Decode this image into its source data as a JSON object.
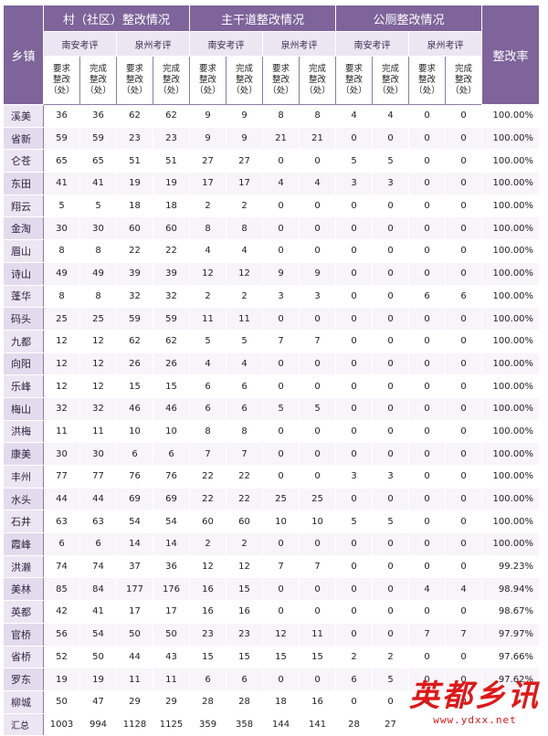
{
  "header": {
    "town_label": "乡镇",
    "rate_label": "整改率",
    "groups": [
      "村（社区）整改情况",
      "主干道整改情况",
      "公厕整改情况"
    ],
    "subgroups": [
      "南安考评",
      "泉州考评",
      "南安考评",
      "泉州考评",
      "南安考评",
      "泉州考评"
    ],
    "col_required": [
      "要求",
      "整改",
      "（处）"
    ],
    "col_done": [
      "完成",
      "整改",
      "（处）"
    ]
  },
  "rows": [
    {
      "town": "溪美",
      "v": [
        "36",
        "36",
        "62",
        "62",
        "9",
        "9",
        "8",
        "8",
        "4",
        "4",
        "0",
        "0"
      ],
      "rate": "100.00%"
    },
    {
      "town": "省新",
      "v": [
        "59",
        "59",
        "23",
        "23",
        "9",
        "9",
        "21",
        "21",
        "0",
        "0",
        "0",
        "0"
      ],
      "rate": "100.00%"
    },
    {
      "town": "仑苍",
      "v": [
        "65",
        "65",
        "51",
        "51",
        "27",
        "27",
        "0",
        "0",
        "5",
        "5",
        "0",
        "0"
      ],
      "rate": "100.00%"
    },
    {
      "town": "东田",
      "v": [
        "41",
        "41",
        "19",
        "19",
        "17",
        "17",
        "4",
        "4",
        "3",
        "3",
        "0",
        "0"
      ],
      "rate": "100.00%"
    },
    {
      "town": "翔云",
      "v": [
        "5",
        "5",
        "18",
        "18",
        "2",
        "2",
        "0",
        "0",
        "0",
        "0",
        "0",
        "0"
      ],
      "rate": "100.00%"
    },
    {
      "town": "金淘",
      "v": [
        "30",
        "30",
        "60",
        "60",
        "8",
        "8",
        "0",
        "0",
        "0",
        "0",
        "0",
        "0"
      ],
      "rate": "100.00%"
    },
    {
      "town": "眉山",
      "v": [
        "8",
        "8",
        "22",
        "22",
        "4",
        "4",
        "0",
        "0",
        "0",
        "0",
        "0",
        "0"
      ],
      "rate": "100.00%"
    },
    {
      "town": "诗山",
      "v": [
        "49",
        "49",
        "39",
        "39",
        "12",
        "12",
        "9",
        "9",
        "0",
        "0",
        "0",
        "0"
      ],
      "rate": "100.00%"
    },
    {
      "town": "蓬华",
      "v": [
        "8",
        "8",
        "32",
        "32",
        "2",
        "2",
        "3",
        "3",
        "0",
        "0",
        "6",
        "6"
      ],
      "rate": "100.00%"
    },
    {
      "town": "码头",
      "v": [
        "25",
        "25",
        "59",
        "59",
        "11",
        "11",
        "0",
        "0",
        "0",
        "0",
        "0",
        "0"
      ],
      "rate": "100.00%"
    },
    {
      "town": "九都",
      "v": [
        "12",
        "12",
        "62",
        "62",
        "5",
        "5",
        "7",
        "7",
        "0",
        "0",
        "0",
        "0"
      ],
      "rate": "100.00%"
    },
    {
      "town": "向阳",
      "v": [
        "12",
        "12",
        "26",
        "26",
        "4",
        "4",
        "0",
        "0",
        "0",
        "0",
        "0",
        "0"
      ],
      "rate": "100.00%"
    },
    {
      "town": "乐峰",
      "v": [
        "12",
        "12",
        "15",
        "15",
        "6",
        "6",
        "0",
        "0",
        "0",
        "0",
        "0",
        "0"
      ],
      "rate": "100.00%"
    },
    {
      "town": "梅山",
      "v": [
        "32",
        "32",
        "46",
        "46",
        "6",
        "6",
        "5",
        "5",
        "0",
        "0",
        "0",
        "0"
      ],
      "rate": "100.00%"
    },
    {
      "town": "洪梅",
      "v": [
        "11",
        "11",
        "10",
        "10",
        "8",
        "8",
        "0",
        "0",
        "0",
        "0",
        "0",
        "0"
      ],
      "rate": "100.00%"
    },
    {
      "town": "康美",
      "v": [
        "30",
        "30",
        "6",
        "6",
        "7",
        "7",
        "0",
        "0",
        "0",
        "0",
        "0",
        "0"
      ],
      "rate": "100.00%"
    },
    {
      "town": "丰州",
      "v": [
        "77",
        "77",
        "76",
        "76",
        "22",
        "22",
        "0",
        "0",
        "3",
        "3",
        "0",
        "0"
      ],
      "rate": "100.00%"
    },
    {
      "town": "水头",
      "v": [
        "44",
        "44",
        "69",
        "69",
        "22",
        "22",
        "25",
        "25",
        "0",
        "0",
        "0",
        "0"
      ],
      "rate": "100.00%"
    },
    {
      "town": "石井",
      "v": [
        "63",
        "63",
        "54",
        "54",
        "60",
        "60",
        "10",
        "10",
        "5",
        "5",
        "0",
        "0"
      ],
      "rate": "100.00%"
    },
    {
      "town": "霞峰",
      "v": [
        "6",
        "6",
        "14",
        "14",
        "2",
        "2",
        "0",
        "0",
        "0",
        "0",
        "0",
        "0"
      ],
      "rate": "100.00%"
    },
    {
      "town": "洪濑",
      "v": [
        "74",
        "74",
        "37",
        "36",
        "12",
        "12",
        "7",
        "7",
        "0",
        "0",
        "0",
        "0"
      ],
      "rate": "99.23%"
    },
    {
      "town": "美林",
      "v": [
        "85",
        "84",
        "177",
        "176",
        "16",
        "15",
        "0",
        "0",
        "0",
        "0",
        "4",
        "4"
      ],
      "rate": "98.94%"
    },
    {
      "town": "英都",
      "v": [
        "42",
        "41",
        "17",
        "17",
        "16",
        "16",
        "0",
        "0",
        "0",
        "0",
        "0",
        "0"
      ],
      "rate": "98.67%"
    },
    {
      "town": "官桥",
      "v": [
        "56",
        "54",
        "50",
        "50",
        "23",
        "23",
        "12",
        "11",
        "0",
        "0",
        "7",
        "7"
      ],
      "rate": "97.97%"
    },
    {
      "town": "省桥",
      "v": [
        "52",
        "50",
        "44",
        "43",
        "15",
        "15",
        "15",
        "15",
        "2",
        "2",
        "0",
        "0"
      ],
      "rate": "97.66%"
    },
    {
      "town": "罗东",
      "v": [
        "19",
        "19",
        "11",
        "11",
        "6",
        "6",
        "0",
        "0",
        "6",
        "5",
        "0",
        "0"
      ],
      "rate": "97.62%"
    },
    {
      "town": "柳城",
      "v": [
        "50",
        "47",
        "29",
        "29",
        "28",
        "28",
        "18",
        "16",
        "0",
        "0",
        "0",
        "0"
      ],
      "rate": ""
    },
    {
      "town": "汇总",
      "v": [
        "1003",
        "994",
        "1128",
        "1125",
        "359",
        "358",
        "144",
        "141",
        "28",
        "27",
        "",
        ""
      ],
      "rate": ""
    }
  ],
  "logo": {
    "name": "英都乡讯",
    "url": "www.ydxx.net"
  }
}
